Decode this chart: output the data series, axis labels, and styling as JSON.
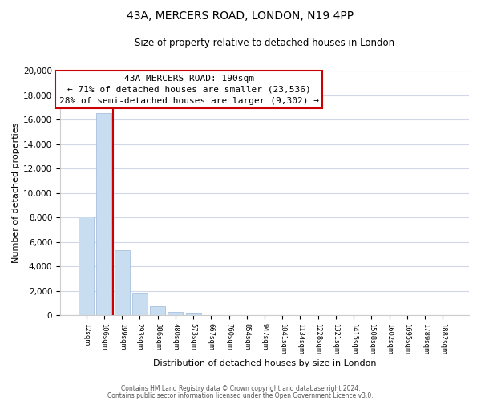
{
  "title1": "43A, MERCERS ROAD, LONDON, N19 4PP",
  "title2": "Size of property relative to detached houses in London",
  "xlabel": "Distribution of detached houses by size in London",
  "ylabel": "Number of detached properties",
  "bar_labels": [
    "12sqm",
    "106sqm",
    "199sqm",
    "293sqm",
    "386sqm",
    "480sqm",
    "573sqm",
    "667sqm",
    "760sqm",
    "854sqm",
    "947sqm",
    "1041sqm",
    "1134sqm",
    "1228sqm",
    "1321sqm",
    "1415sqm",
    "1508sqm",
    "1602sqm",
    "1695sqm",
    "1789sqm",
    "1882sqm"
  ],
  "bar_values": [
    8100,
    16500,
    5300,
    1850,
    750,
    300,
    200,
    0,
    0,
    0,
    0,
    0,
    0,
    0,
    0,
    0,
    0,
    0,
    0,
    0,
    0
  ],
  "bar_color": "#c8ddf0",
  "bar_edge_color": "#9ab8d8",
  "vline_color": "#cc0000",
  "annotation_title": "43A MERCERS ROAD: 190sqm",
  "annotation_line1": "← 71% of detached houses are smaller (23,536)",
  "annotation_line2": "28% of semi-detached houses are larger (9,302) →",
  "annotation_box_color": "#ffffff",
  "annotation_box_edge": "#cc0000",
  "ylim": [
    0,
    20000
  ],
  "yticks": [
    0,
    2000,
    4000,
    6000,
    8000,
    10000,
    12000,
    14000,
    16000,
    18000,
    20000
  ],
  "footer1": "Contains HM Land Registry data © Crown copyright and database right 2024.",
  "footer2": "Contains public sector information licensed under the Open Government Licence v3.0.",
  "bg_color": "#ffffff",
  "grid_color": "#d0d8e8"
}
